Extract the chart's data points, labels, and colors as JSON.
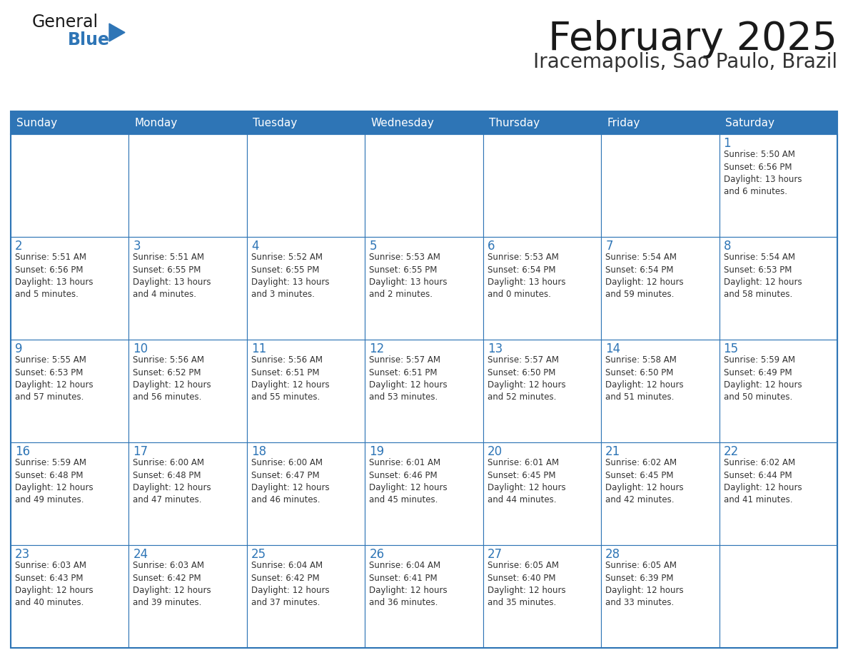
{
  "title": "February 2025",
  "subtitle": "Iracemapolis, Sao Paulo, Brazil",
  "header_bg": "#2E75B6",
  "header_text": "#FFFFFF",
  "cell_bg": "#FFFFFF",
  "border_color": "#2E75B6",
  "day_names": [
    "Sunday",
    "Monday",
    "Tuesday",
    "Wednesday",
    "Thursday",
    "Friday",
    "Saturday"
  ],
  "title_color": "#1a1a1a",
  "subtitle_color": "#333333",
  "day_number_color": "#2E75B6",
  "cell_text_color": "#333333",
  "logo_text_general": "General",
  "logo_text_blue": "Blue",
  "logo_triangle_color": "#2E75B6",
  "logo_general_color": "#1a1a1a",
  "logo_blue_color": "#2E75B6",
  "weeks": [
    [
      {
        "day": null,
        "info": null
      },
      {
        "day": null,
        "info": null
      },
      {
        "day": null,
        "info": null
      },
      {
        "day": null,
        "info": null
      },
      {
        "day": null,
        "info": null
      },
      {
        "day": null,
        "info": null
      },
      {
        "day": 1,
        "info": "Sunrise: 5:50 AM\nSunset: 6:56 PM\nDaylight: 13 hours\nand 6 minutes."
      }
    ],
    [
      {
        "day": 2,
        "info": "Sunrise: 5:51 AM\nSunset: 6:56 PM\nDaylight: 13 hours\nand 5 minutes."
      },
      {
        "day": 3,
        "info": "Sunrise: 5:51 AM\nSunset: 6:55 PM\nDaylight: 13 hours\nand 4 minutes."
      },
      {
        "day": 4,
        "info": "Sunrise: 5:52 AM\nSunset: 6:55 PM\nDaylight: 13 hours\nand 3 minutes."
      },
      {
        "day": 5,
        "info": "Sunrise: 5:53 AM\nSunset: 6:55 PM\nDaylight: 13 hours\nand 2 minutes."
      },
      {
        "day": 6,
        "info": "Sunrise: 5:53 AM\nSunset: 6:54 PM\nDaylight: 13 hours\nand 0 minutes."
      },
      {
        "day": 7,
        "info": "Sunrise: 5:54 AM\nSunset: 6:54 PM\nDaylight: 12 hours\nand 59 minutes."
      },
      {
        "day": 8,
        "info": "Sunrise: 5:54 AM\nSunset: 6:53 PM\nDaylight: 12 hours\nand 58 minutes."
      }
    ],
    [
      {
        "day": 9,
        "info": "Sunrise: 5:55 AM\nSunset: 6:53 PM\nDaylight: 12 hours\nand 57 minutes."
      },
      {
        "day": 10,
        "info": "Sunrise: 5:56 AM\nSunset: 6:52 PM\nDaylight: 12 hours\nand 56 minutes."
      },
      {
        "day": 11,
        "info": "Sunrise: 5:56 AM\nSunset: 6:51 PM\nDaylight: 12 hours\nand 55 minutes."
      },
      {
        "day": 12,
        "info": "Sunrise: 5:57 AM\nSunset: 6:51 PM\nDaylight: 12 hours\nand 53 minutes."
      },
      {
        "day": 13,
        "info": "Sunrise: 5:57 AM\nSunset: 6:50 PM\nDaylight: 12 hours\nand 52 minutes."
      },
      {
        "day": 14,
        "info": "Sunrise: 5:58 AM\nSunset: 6:50 PM\nDaylight: 12 hours\nand 51 minutes."
      },
      {
        "day": 15,
        "info": "Sunrise: 5:59 AM\nSunset: 6:49 PM\nDaylight: 12 hours\nand 50 minutes."
      }
    ],
    [
      {
        "day": 16,
        "info": "Sunrise: 5:59 AM\nSunset: 6:48 PM\nDaylight: 12 hours\nand 49 minutes."
      },
      {
        "day": 17,
        "info": "Sunrise: 6:00 AM\nSunset: 6:48 PM\nDaylight: 12 hours\nand 47 minutes."
      },
      {
        "day": 18,
        "info": "Sunrise: 6:00 AM\nSunset: 6:47 PM\nDaylight: 12 hours\nand 46 minutes."
      },
      {
        "day": 19,
        "info": "Sunrise: 6:01 AM\nSunset: 6:46 PM\nDaylight: 12 hours\nand 45 minutes."
      },
      {
        "day": 20,
        "info": "Sunrise: 6:01 AM\nSunset: 6:45 PM\nDaylight: 12 hours\nand 44 minutes."
      },
      {
        "day": 21,
        "info": "Sunrise: 6:02 AM\nSunset: 6:45 PM\nDaylight: 12 hours\nand 42 minutes."
      },
      {
        "day": 22,
        "info": "Sunrise: 6:02 AM\nSunset: 6:44 PM\nDaylight: 12 hours\nand 41 minutes."
      }
    ],
    [
      {
        "day": 23,
        "info": "Sunrise: 6:03 AM\nSunset: 6:43 PM\nDaylight: 12 hours\nand 40 minutes."
      },
      {
        "day": 24,
        "info": "Sunrise: 6:03 AM\nSunset: 6:42 PM\nDaylight: 12 hours\nand 39 minutes."
      },
      {
        "day": 25,
        "info": "Sunrise: 6:04 AM\nSunset: 6:42 PM\nDaylight: 12 hours\nand 37 minutes."
      },
      {
        "day": 26,
        "info": "Sunrise: 6:04 AM\nSunset: 6:41 PM\nDaylight: 12 hours\nand 36 minutes."
      },
      {
        "day": 27,
        "info": "Sunrise: 6:05 AM\nSunset: 6:40 PM\nDaylight: 12 hours\nand 35 minutes."
      },
      {
        "day": 28,
        "info": "Sunrise: 6:05 AM\nSunset: 6:39 PM\nDaylight: 12 hours\nand 33 minutes."
      },
      {
        "day": null,
        "info": null
      }
    ]
  ]
}
